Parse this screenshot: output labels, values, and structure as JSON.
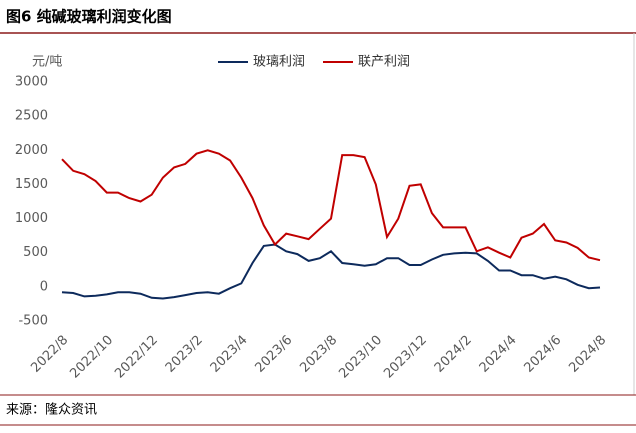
{
  "header": {
    "title": "图6  纯碱玻璃利润变化图"
  },
  "footer": {
    "source": "来源：隆众资讯"
  },
  "chart_data": {
    "type": "line",
    "y_axis_label": "元/吨",
    "categories": [
      "2022/8",
      null,
      null,
      null,
      "2022/10",
      null,
      null,
      null,
      "2022/12",
      null,
      null,
      null,
      "2023/2",
      null,
      null,
      null,
      "2023/4",
      null,
      null,
      null,
      "2023/6",
      null,
      null,
      null,
      "2023/8",
      null,
      null,
      null,
      "2023/10",
      null,
      null,
      null,
      "2023/12",
      null,
      null,
      null,
      "2024/2",
      null,
      null,
      null,
      "2024/4",
      null,
      null,
      null,
      "2024/6",
      null,
      null,
      null,
      "2024/8"
    ],
    "series": [
      {
        "name": "玻璃利润",
        "color": "#0d2a5c",
        "values": [
          -80,
          -90,
          -140,
          -130,
          -110,
          -80,
          -80,
          -100,
          -160,
          -170,
          -150,
          -120,
          -90,
          -80,
          -100,
          -20,
          50,
          350,
          600,
          620,
          520,
          480,
          380,
          420,
          520,
          350,
          330,
          310,
          330,
          420,
          420,
          320,
          320,
          400,
          470,
          490,
          500,
          490,
          380,
          240,
          240,
          170,
          170,
          120,
          150,
          110,
          30,
          -20,
          -10
        ]
      },
      {
        "name": "联产利润",
        "color": "#c00000",
        "values": [
          1870,
          1700,
          1650,
          1550,
          1380,
          1380,
          1300,
          1250,
          1350,
          1600,
          1750,
          1800,
          1950,
          2000,
          1950,
          1850,
          1600,
          1300,
          900,
          620,
          780,
          740,
          700,
          850,
          1000,
          1930,
          1930,
          1900,
          1500,
          730,
          1000,
          1480,
          1500,
          1080,
          870,
          870,
          870,
          520,
          580,
          500,
          430,
          720,
          780,
          920,
          680,
          650,
          570,
          430,
          390
        ]
      }
    ],
    "ylim": [
      -500,
      3000
    ],
    "yticks": [
      -500,
      0,
      500,
      1000,
      1500,
      2000,
      2500,
      3000
    ],
    "legend": "top"
  }
}
